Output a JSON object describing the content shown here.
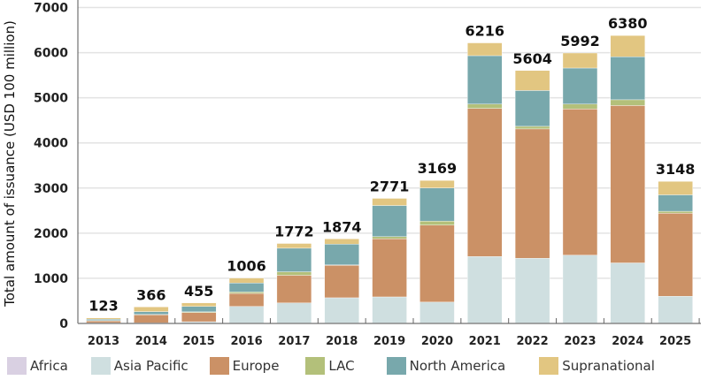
{
  "chart_data": {
    "type": "bar",
    "stacked": true,
    "title": "",
    "xlabel": "",
    "ylabel": "Total amount of issuance (USD 100 million)",
    "ylim": [
      0,
      7000
    ],
    "yticks": [
      0,
      1000,
      2000,
      3000,
      4000,
      5000,
      6000,
      7000
    ],
    "grid": true,
    "legend_position": "bottom",
    "categories": [
      "2013",
      "2014",
      "2015",
      "2016",
      "2017",
      "2018",
      "2019",
      "2020",
      "2021",
      "2022",
      "2023",
      "2024",
      "2025"
    ],
    "totals": [
      123,
      366,
      455,
      1006,
      1772,
      1874,
      2771,
      3169,
      6216,
      5604,
      5992,
      6380,
      3148
    ],
    "series": [
      {
        "name": "Africa",
        "color": "#d9d0e2",
        "values": [
          5,
          0,
          0,
          0,
          0,
          0,
          0,
          0,
          0,
          0,
          0,
          0,
          0
        ]
      },
      {
        "name": "Asia Pacific",
        "color": "#cfdfe0",
        "values": [
          5,
          10,
          38,
          377,
          454,
          569,
          588,
          473,
          1483,
          1444,
          1513,
          1341,
          602
        ]
      },
      {
        "name": "Europe",
        "color": "#cb9166",
        "values": [
          50,
          185,
          202,
          288,
          613,
          718,
          1289,
          1705,
          3282,
          2866,
          3238,
          3487,
          1839
        ]
      },
      {
        "name": "LAC",
        "color": "#b3c07a",
        "values": [
          3,
          4,
          17,
          32,
          77,
          10,
          46,
          90,
          95,
          58,
          109,
          128,
          44
        ]
      },
      {
        "name": "North America",
        "color": "#78a8ac",
        "values": [
          30,
          63,
          120,
          198,
          523,
          460,
          690,
          734,
          1073,
          793,
          799,
          952,
          364
        ]
      },
      {
        "name": "Supranational",
        "color": "#e2c681",
        "values": [
          30,
          104,
          78,
          111,
          105,
          117,
          158,
          167,
          283,
          443,
          333,
          472,
          299
        ]
      }
    ]
  }
}
